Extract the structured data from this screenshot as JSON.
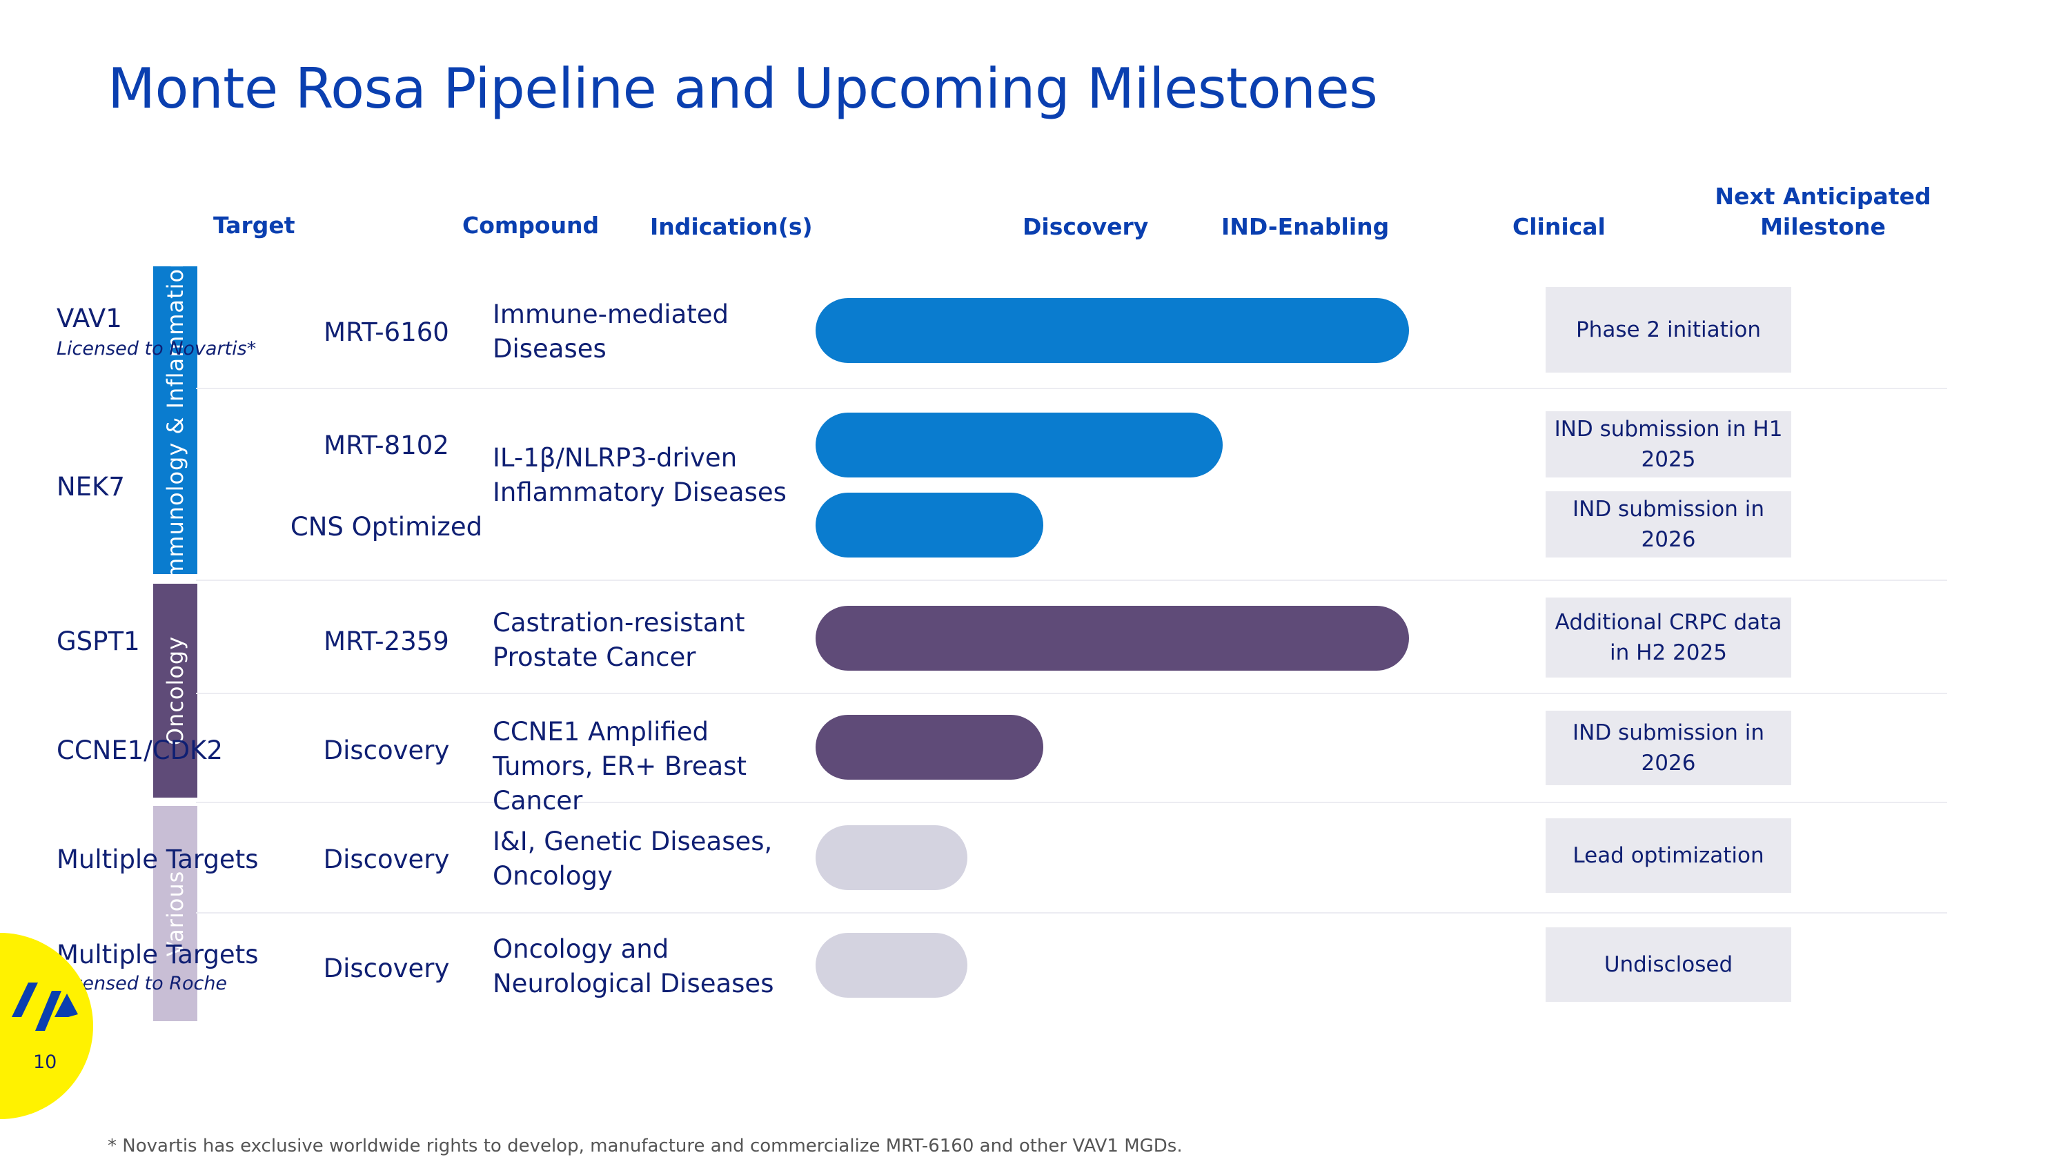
{
  "title": "Monte Rosa Pipeline and Upcoming Milestones",
  "headers": {
    "target": "Target",
    "compound": "Compound",
    "indication": "Indication(s)",
    "discovery": "Discovery",
    "ind_enabling": "IND-Enabling",
    "clinical": "Clinical",
    "next_milestone": "Next Anticipated Milestone"
  },
  "categories": [
    {
      "label": "Immunology & Inflammation",
      "color": "#0a7ccf"
    },
    {
      "label": "Oncology",
      "color": "#5f4b78"
    },
    {
      "label": "Various",
      "color": "#c8bed5"
    }
  ],
  "rows": [
    {
      "target": "VAV1",
      "note": "Licensed to Novartis*",
      "compound": "MRT-6160",
      "indication": "Immune-mediated Diseases",
      "milestone": "Phase 2 initiation",
      "stage_progress": 0.86,
      "bar_color": "#0a7ccf"
    },
    {
      "target": "NEK7",
      "note": "",
      "compound": "MRT-8102",
      "indication": "IL-1β/NLRP3-driven Inflammatory Diseases",
      "milestone": "IND submission in H1 2025",
      "stage_progress": 0.59,
      "bar_color": "#0a7ccf"
    },
    {
      "target": "",
      "note": "",
      "compound": "CNS Optimized",
      "indication": "",
      "milestone": "IND submission in 2026",
      "stage_progress": 0.33,
      "bar_color": "#0a7ccf"
    },
    {
      "target": "GSPT1",
      "note": "",
      "compound": "MRT-2359",
      "indication": "Castration-resistant Prostate Cancer",
      "milestone": "Additional CRPC data in H2 2025",
      "stage_progress": 0.86,
      "bar_color": "#5f4b78"
    },
    {
      "target": "CCNE1/CDK2",
      "note": "",
      "compound": "Discovery",
      "indication": "CCNE1 Amplified Tumors, ER+ Breast Cancer",
      "milestone": "IND submission in 2026",
      "stage_progress": 0.33,
      "bar_color": "#5f4b78"
    },
    {
      "target": "Multiple Targets",
      "note": "",
      "compound": "Discovery",
      "indication": "I&I, Genetic Diseases, Oncology",
      "milestone": "Lead optimization",
      "stage_progress": 0.22,
      "bar_color": "#d4d3e0"
    },
    {
      "target": "Multiple Targets",
      "note": "Licensed to Roche",
      "compound": "Discovery",
      "indication": "Oncology and Neurological Diseases",
      "milestone": "Undisclosed",
      "stage_progress": 0.22,
      "bar_color": "#d4d3e0"
    }
  ],
  "page_number": "10",
  "footnote": "* Novartis has exclusive worldwide rights to develop, manufacture and commercialize MRT-6160 and other VAV1 MGDs."
}
